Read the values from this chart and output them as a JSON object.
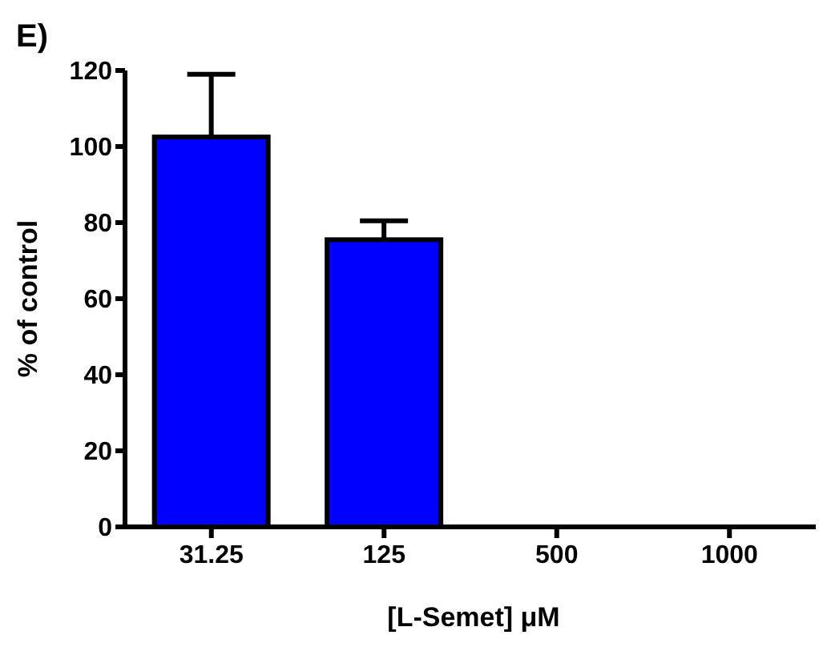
{
  "chart_data": {
    "type": "bar",
    "title": "E)",
    "xlabel": "[L-Semet] μM",
    "ylabel": "% of control",
    "categories": [
      "31.25",
      "125",
      "500",
      "1000"
    ],
    "values": [
      102.5,
      75.5,
      0,
      0
    ],
    "errors": [
      [
        102.5,
        119
      ],
      [
        75.5,
        80.5
      ],
      null,
      null
    ],
    "color": "#0000ff",
    "ylim": [
      0,
      120
    ],
    "yticks": [
      0,
      20,
      40,
      60,
      80,
      100,
      120
    ],
    "grid": false
  }
}
